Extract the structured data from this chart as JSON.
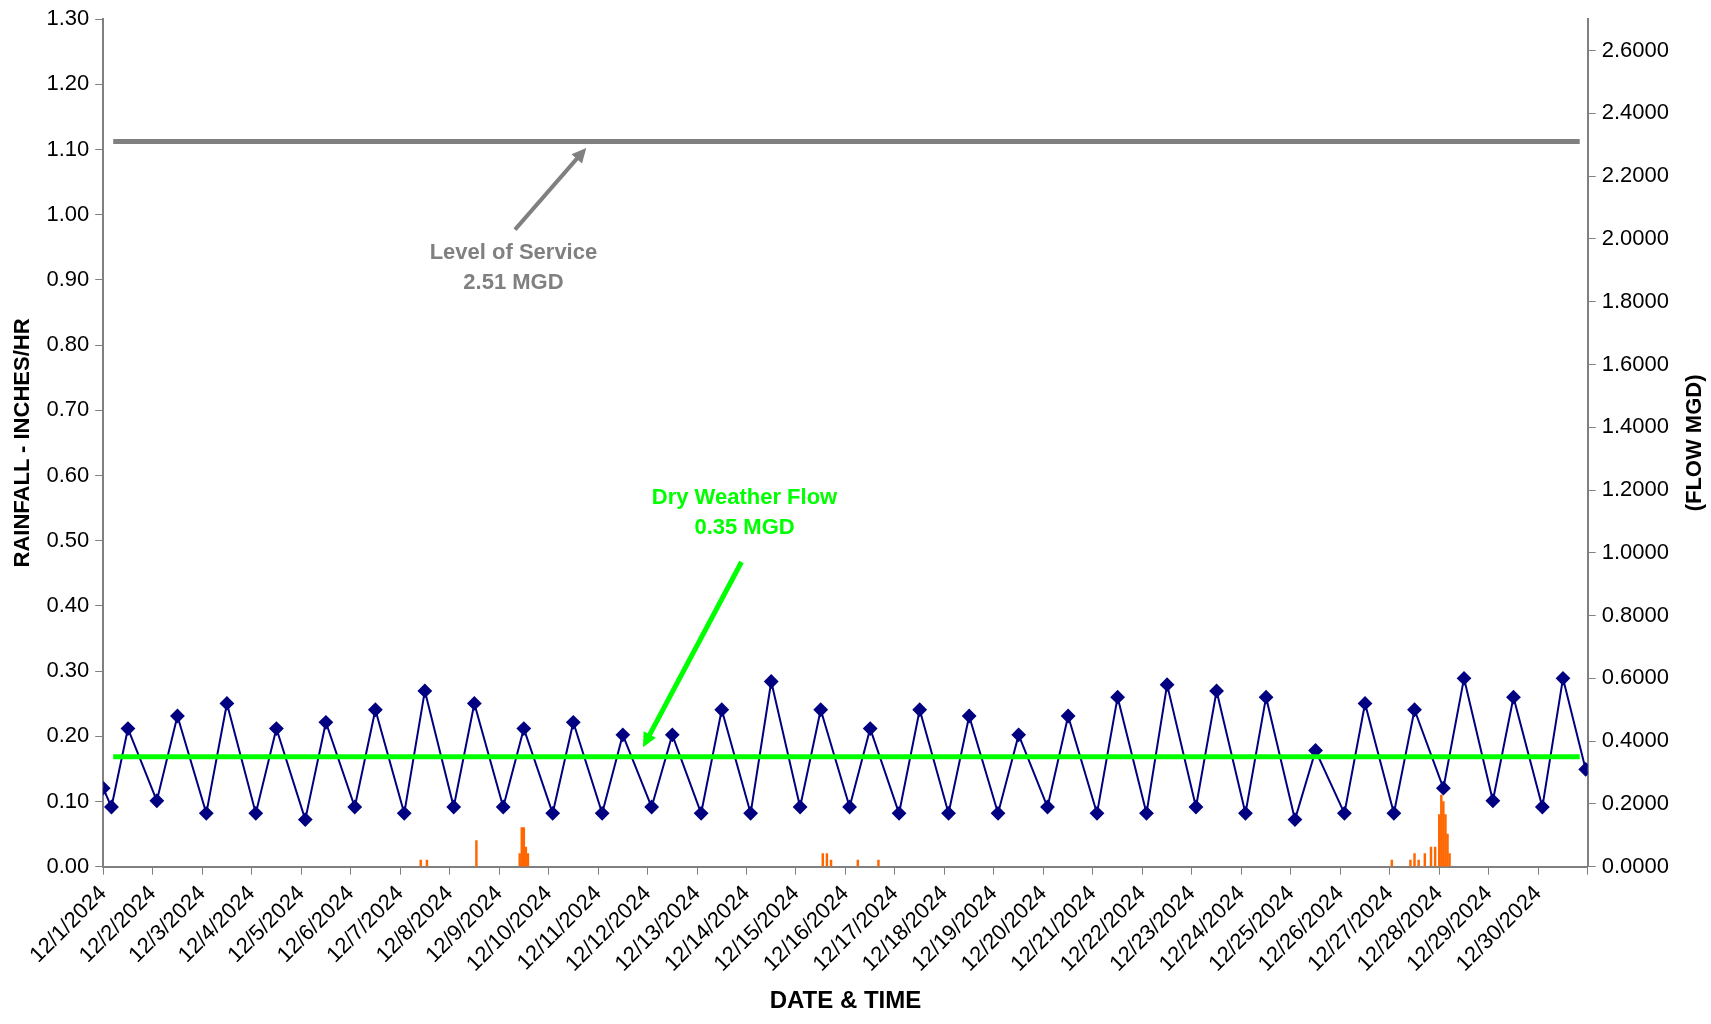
{
  "chart_data": {
    "type": "line",
    "xlabel": "DATE & TIME",
    "ylabel": "RAINFALL - INCHES/HR",
    "y2label": "(FLOW MGD)",
    "grid": false,
    "legend": false,
    "marker": "diamond",
    "xlim": [
      "2024-12-01",
      "2024-12-31"
    ],
    "xticks": [
      {
        "value": "2024-12-01",
        "label": "12/1/2024"
      },
      {
        "value": "2024-12-02",
        "label": "12/2/2024"
      },
      {
        "value": "2024-12-03",
        "label": "12/3/2024"
      },
      {
        "value": "2024-12-04",
        "label": "12/4/2024"
      },
      {
        "value": "2024-12-05",
        "label": "12/5/2024"
      },
      {
        "value": "2024-12-06",
        "label": "12/6/2024"
      },
      {
        "value": "2024-12-07",
        "label": "12/7/2024"
      },
      {
        "value": "2024-12-08",
        "label": "12/8/2024"
      },
      {
        "value": "2024-12-09",
        "label": "12/9/2024"
      },
      {
        "value": "2024-12-10",
        "label": "12/10/2024"
      },
      {
        "value": "2024-12-11",
        "label": "12/11/2024"
      },
      {
        "value": "2024-12-12",
        "label": "12/12/2024"
      },
      {
        "value": "2024-12-13",
        "label": "12/13/2024"
      },
      {
        "value": "2024-12-14",
        "label": "12/14/2024"
      },
      {
        "value": "2024-12-15",
        "label": "12/15/2024"
      },
      {
        "value": "2024-12-16",
        "label": "12/16/2024"
      },
      {
        "value": "2024-12-17",
        "label": "12/17/2024"
      },
      {
        "value": "2024-12-18",
        "label": "12/18/2024"
      },
      {
        "value": "2024-12-19",
        "label": "12/19/2024"
      },
      {
        "value": "2024-12-20",
        "label": "12/20/2024"
      },
      {
        "value": "2024-12-21",
        "label": "12/21/2024"
      },
      {
        "value": "2024-12-22",
        "label": "12/22/2024"
      },
      {
        "value": "2024-12-23",
        "label": "12/23/2024"
      },
      {
        "value": "2024-12-24",
        "label": "12/24/2024"
      },
      {
        "value": "2024-12-25",
        "label": "12/25/2024"
      },
      {
        "value": "2024-12-26",
        "label": "12/26/2024"
      },
      {
        "value": "2024-12-27",
        "label": "12/27/2024"
      },
      {
        "value": "2024-12-28",
        "label": "12/28/2024"
      },
      {
        "value": "2024-12-29",
        "label": "12/29/2024"
      },
      {
        "value": "2024-12-30",
        "label": "12/30/2024"
      },
      {
        "value": "2024-12-31",
        "label": null
      }
    ],
    "ylim": [
      0,
      1.3
    ],
    "yticks": [
      {
        "value": 0,
        "label": "0.00"
      },
      {
        "value": 0.1,
        "label": "0.10"
      },
      {
        "value": 0.2,
        "label": "0.20"
      },
      {
        "value": 0.3,
        "label": "0.30"
      },
      {
        "value": 0.4,
        "label": "0.40"
      },
      {
        "value": 0.5,
        "label": "0.50"
      },
      {
        "value": 0.6,
        "label": "0.60"
      },
      {
        "value": 0.7,
        "label": "0.70"
      },
      {
        "value": 0.8,
        "label": "0.80"
      },
      {
        "value": 0.9,
        "label": "0.90"
      },
      {
        "value": 1,
        "label": "1.00"
      },
      {
        "value": 1.1,
        "label": "1.10"
      },
      {
        "value": 1.2,
        "label": "1.20"
      },
      {
        "value": 1.3,
        "label": "1.30"
      }
    ],
    "y2lim": [
      0,
      2.7
    ],
    "y2ticks": [
      {
        "value": 0,
        "label": "0.0000"
      },
      {
        "value": 0.2,
        "label": "0.2000"
      },
      {
        "value": 0.4,
        "label": "0.4000"
      },
      {
        "value": 0.6,
        "label": "0.6000"
      },
      {
        "value": 0.8,
        "label": "0.8000"
      },
      {
        "value": 1,
        "label": "1.0000"
      },
      {
        "value": 1.2,
        "label": "1.2000"
      },
      {
        "value": 1.4,
        "label": "1.4000"
      },
      {
        "value": 1.6,
        "label": "1.6000"
      },
      {
        "value": 1.8,
        "label": "1.8000"
      },
      {
        "value": 2,
        "label": "2.0000"
      },
      {
        "value": 2.2,
        "label": "2.2000"
      },
      {
        "value": 2.4,
        "label": "2.4000"
      },
      {
        "value": 2.6,
        "label": "2.6000"
      }
    ],
    "ref_lines": [
      {
        "axis": "y2",
        "value": 2.31,
        "label": "Level of Service\n2.51 MGD",
        "color": "#808080"
      },
      {
        "axis": "y2",
        "value": 0.35,
        "label": "Dry Weather Flow\n0.35 MGD",
        "color": "#00ff00"
      }
    ],
    "series": [
      {
        "type": "bar",
        "axis": "y",
        "color": "#ff6600",
        "x": [
          "2024-12-07T10:00",
          "2024-12-07T13:00",
          "2024-12-08T13:00",
          "2024-12-09T10:00",
          "2024-12-09T11:00",
          "2024-12-09T12:00",
          "2024-12-09T13:00",
          "2024-12-09T14:00",
          "2024-12-15T13:00",
          "2024-12-15T15:00",
          "2024-12-15T17:00",
          "2024-12-16T06:00",
          "2024-12-16T16:00",
          "2024-12-27T01:00",
          "2024-12-27T10:00",
          "2024-12-27T12:00",
          "2024-12-27T14:00",
          "2024-12-27T17:00",
          "2024-12-27T20:00",
          "2024-12-27T22:00",
          "2024-12-28T00:00",
          "2024-12-28T01:00",
          "2024-12-28T02:00",
          "2024-12-28T03:00",
          "2024-12-28T04:00",
          "2024-12-28T05:00"
        ],
        "values": [
          0.01,
          0.01,
          0.04,
          0.02,
          0.06,
          0.06,
          0.03,
          0.02,
          0.02,
          0.02,
          0.01,
          0.01,
          0.01,
          0.01,
          0.01,
          0.02,
          0.01,
          0.02,
          0.03,
          0.03,
          0.08,
          0.11,
          0.1,
          0.08,
          0.05,
          0.02
        ]
      },
      {
        "axis": "y2",
        "color": "#000080",
        "x": [
          "2024-12-01T00:00",
          "2024-12-01T04:00",
          "2024-12-01T12:00",
          "2024-12-02T02:00",
          "2024-12-02T12:00",
          "2024-12-03T02:00",
          "2024-12-03T12:00",
          "2024-12-04T02:00",
          "2024-12-04T12:00",
          "2024-12-05T02:00",
          "2024-12-05T12:00",
          "2024-12-06T02:00",
          "2024-12-06T12:00",
          "2024-12-07T02:00",
          "2024-12-07T12:00",
          "2024-12-08T02:00",
          "2024-12-08T12:00",
          "2024-12-09T02:00",
          "2024-12-09T12:00",
          "2024-12-10T02:00",
          "2024-12-10T12:00",
          "2024-12-11T02:00",
          "2024-12-11T12:00",
          "2024-12-12T02:00",
          "2024-12-12T12:00",
          "2024-12-13T02:00",
          "2024-12-13T12:00",
          "2024-12-14T02:00",
          "2024-12-14T12:00",
          "2024-12-15T02:00",
          "2024-12-15T12:00",
          "2024-12-16T02:00",
          "2024-12-16T12:00",
          "2024-12-17T02:00",
          "2024-12-17T12:00",
          "2024-12-18T02:00",
          "2024-12-18T12:00",
          "2024-12-19T02:00",
          "2024-12-19T12:00",
          "2024-12-20T02:00",
          "2024-12-20T12:00",
          "2024-12-21T02:00",
          "2024-12-21T12:00",
          "2024-12-22T02:00",
          "2024-12-22T12:00",
          "2024-12-23T02:00",
          "2024-12-23T12:00",
          "2024-12-24T02:00",
          "2024-12-24T12:00",
          "2024-12-25T02:00",
          "2024-12-25T12:00",
          "2024-12-26T02:00",
          "2024-12-26T12:00",
          "2024-12-27T02:00",
          "2024-12-27T12:00",
          "2024-12-28T02:00",
          "2024-12-28T12:00",
          "2024-12-29T02:00",
          "2024-12-29T12:00",
          "2024-12-30T02:00",
          "2024-12-30T12:00",
          "2024-12-30T23:00"
        ],
        "values": [
          0.25,
          0.19,
          0.44,
          0.21,
          0.48,
          0.17,
          0.52,
          0.17,
          0.44,
          0.15,
          0.46,
          0.19,
          0.5,
          0.17,
          0.56,
          0.19,
          0.52,
          0.19,
          0.44,
          0.17,
          0.46,
          0.17,
          0.42,
          0.19,
          0.42,
          0.17,
          0.5,
          0.17,
          0.59,
          0.19,
          0.5,
          0.19,
          0.44,
          0.17,
          0.5,
          0.17,
          0.48,
          0.17,
          0.42,
          0.19,
          0.48,
          0.17,
          0.54,
          0.17,
          0.58,
          0.19,
          0.56,
          0.17,
          0.54,
          0.15,
          0.37,
          0.17,
          0.52,
          0.17,
          0.5,
          0.25,
          0.6,
          0.21,
          0.54,
          0.19,
          0.6,
          0.31
        ]
      }
    ]
  }
}
